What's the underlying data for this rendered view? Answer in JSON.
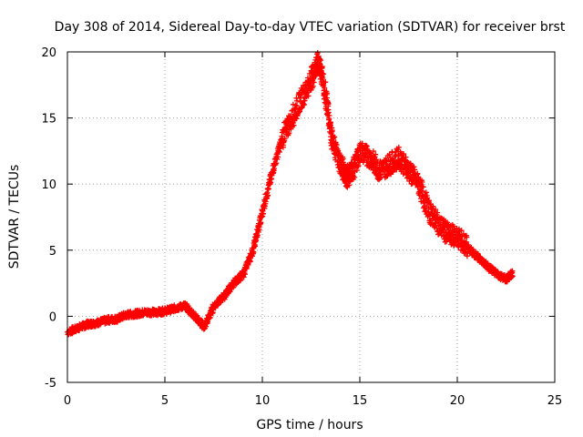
{
  "chart_data": {
    "type": "scatter",
    "title": "Day 308 of 2014, Sidereal Day-to-day VTEC variation (SDTVAR) for receiver brst",
    "xlabel": "GPS time / hours",
    "ylabel": "SDTVAR / TECUs",
    "xlim": [
      0,
      25
    ],
    "ylim": [
      -5,
      20
    ],
    "xticks": [
      0,
      5,
      10,
      15,
      20,
      25
    ],
    "yticks": [
      -5,
      0,
      5,
      10,
      15,
      20
    ],
    "grid": true,
    "marker": "+",
    "series_color": "#ff0000",
    "series": [
      {
        "name": "SDTVAR",
        "x": [
          0,
          0.5,
          1,
          1.5,
          2,
          2.5,
          3,
          3.5,
          4,
          4.5,
          5,
          5.5,
          6,
          6.5,
          7,
          7.5,
          8,
          8.5,
          9,
          9.5,
          10,
          10.5,
          11,
          11.5,
          12,
          12.5,
          12.8,
          13,
          13.3,
          13.6,
          14,
          14.3,
          14.6,
          15,
          15.5,
          16,
          16.5,
          17,
          17.5,
          18,
          18.5,
          19,
          19.5,
          20,
          20.5,
          21,
          21.5,
          22,
          22.5,
          22.8
        ],
        "values": [
          -1.2,
          -0.9,
          -0.6,
          -0.5,
          -0.3,
          -0.2,
          0.1,
          0.2,
          0.3,
          0.3,
          0.4,
          0.6,
          0.8,
          0,
          -0.8,
          0.8,
          1.5,
          2.5,
          3.2,
          5,
          8,
          11,
          13.5,
          15,
          16.5,
          18,
          19.2,
          18.5,
          16,
          13,
          11.5,
          10.5,
          11,
          12.5,
          12,
          11,
          11.5,
          12,
          11,
          10,
          8,
          7,
          6.2,
          6,
          5.2,
          4.5,
          3.8,
          3.2,
          2.8,
          3.3
        ]
      }
    ]
  }
}
